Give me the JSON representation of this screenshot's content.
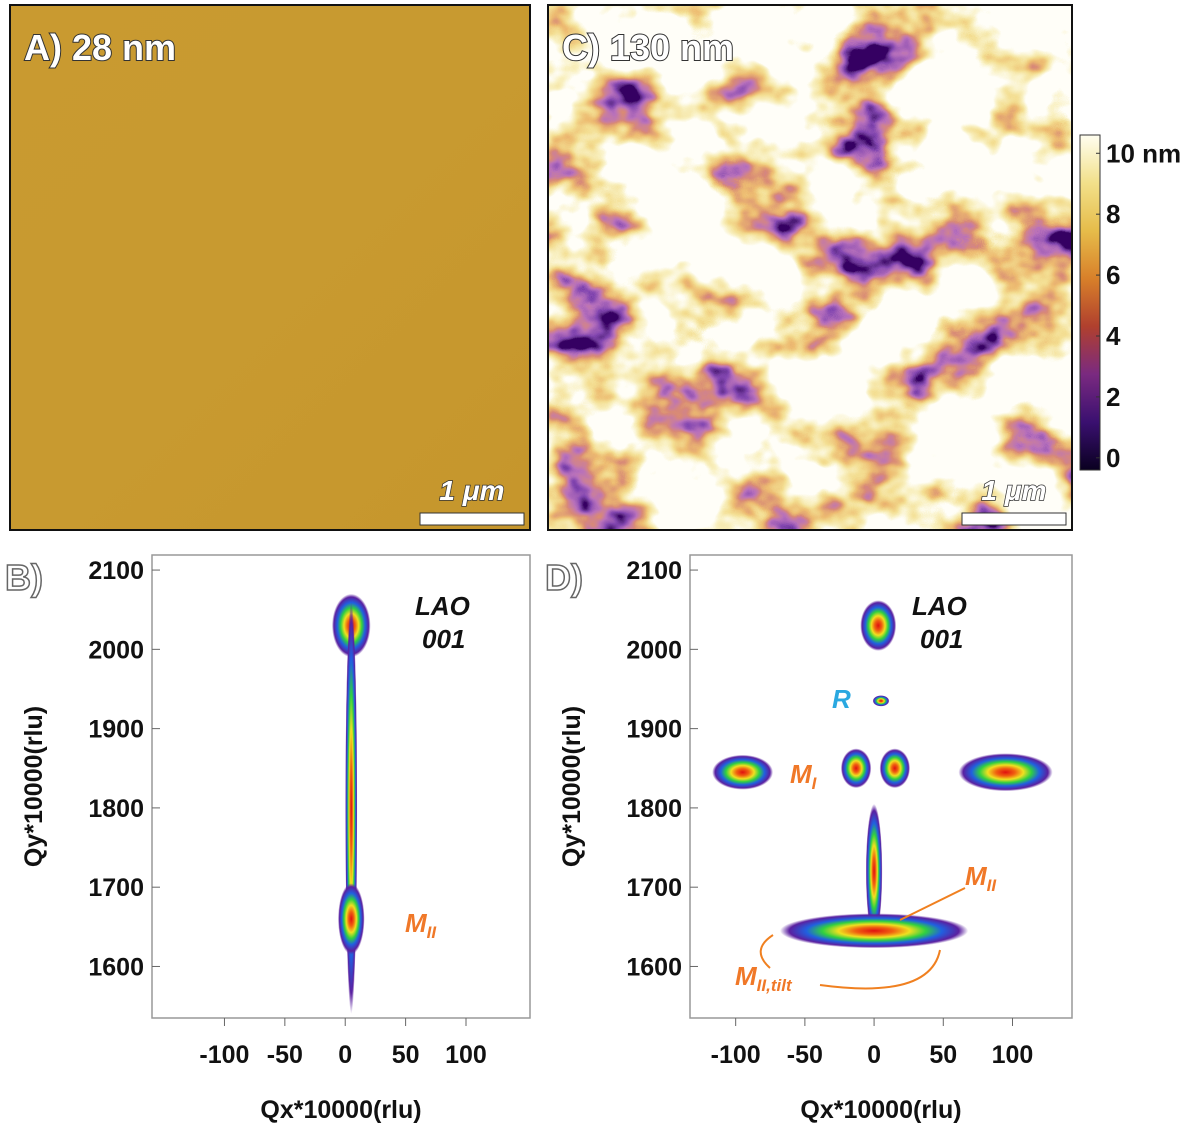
{
  "chart_data": [
    {
      "type": "image",
      "title": "A) 28 nm",
      "scalebar": "1 μm",
      "color": "#c89a30"
    },
    {
      "type": "image",
      "title": "C) 130 nm",
      "scalebar": "1 μm",
      "colorbar": {
        "lim": [
          -0.4,
          10.6
        ],
        "ticks": [
          0,
          2,
          4,
          6,
          8,
          {
            "value": 10,
            "label": "10 nm"
          }
        ],
        "colormap": [
          "#0a0020",
          "#3a1070",
          "#7a2a80",
          "#b0402e",
          "#d8802a",
          "#e6bc4a",
          "#f2e08a",
          "#fffef0"
        ]
      }
    },
    {
      "type": "scatter",
      "panel": "B)",
      "xlabel": "Qx*10000(rlu)",
      "ylabel": "Qy*10000(rlu)",
      "xlim": [
        -160,
        153
      ],
      "ylim": [
        1535,
        2119
      ],
      "xticks": [
        -100,
        -50,
        0,
        50,
        100
      ],
      "yticks": [
        1600,
        1700,
        1800,
        1900,
        2000,
        2100
      ],
      "spots": {
        "x": [
          5,
          5,
          5
        ],
        "y": [
          2030,
          1800,
          1660
        ],
        "x_spread": [
          16,
          5,
          11
        ],
        "y_spread": [
          40,
          260,
          45
        ]
      },
      "annotations": [
        {
          "text": "LAO"
        },
        {
          "text": "001"
        },
        {
          "text": "M",
          "sub": "II"
        }
      ]
    },
    {
      "type": "scatter",
      "panel": "D)",
      "xlabel": "Qx*10000(rlu)",
      "ylabel": "Qy*10000(rlu)",
      "xlim": [
        -133,
        143
      ],
      "ylim": [
        1535,
        2119
      ],
      "xticks": [
        -100,
        -50,
        0,
        50,
        100
      ],
      "yticks": [
        1600,
        1700,
        1800,
        1900,
        2000,
        2100
      ],
      "spots": {
        "x": [
          3,
          5,
          -95,
          -13,
          15,
          95,
          0,
          0
        ],
        "y": [
          2030,
          1935,
          1845,
          1850,
          1850,
          1845,
          1720,
          1645
        ],
        "x_spread": [
          13,
          6,
          22,
          11,
          11,
          34,
          6,
          68
        ],
        "y_spread": [
          32,
          7,
          22,
          25,
          25,
          24,
          85,
          22
        ]
      },
      "annotations": [
        {
          "text": "LAO"
        },
        {
          "text": "001"
        },
        {
          "text": "R"
        },
        {
          "text": "M",
          "sub": "I"
        },
        {
          "text": "M",
          "sub": "II"
        },
        {
          "text": "M",
          "sub": "II,tilt"
        }
      ]
    }
  ]
}
